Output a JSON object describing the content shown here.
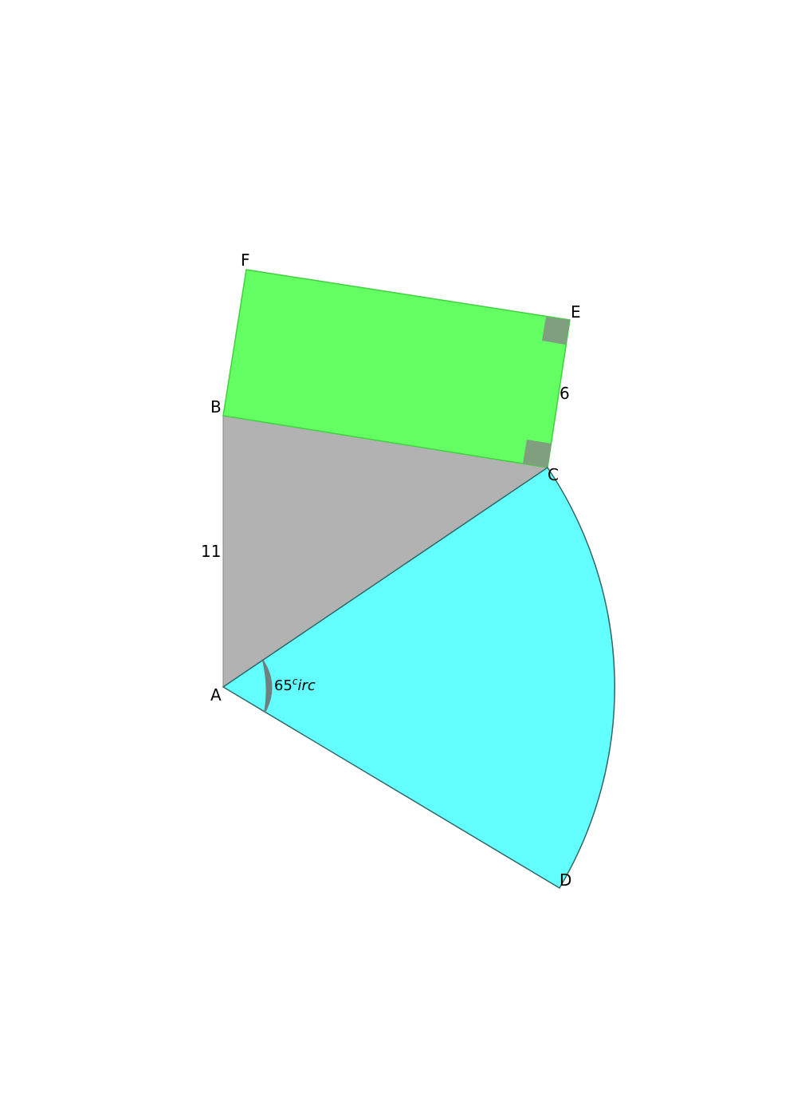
{
  "diagram": {
    "points": {
      "A": "A",
      "B": "B",
      "C": "C",
      "D": "D",
      "E": "E",
      "F": "F"
    },
    "side_labels": {
      "AB": "11",
      "CE": "6"
    },
    "angle_label": {
      "value": "65",
      "sup": "c",
      "rest": "irc"
    },
    "colors": {
      "triangle_fill": "#b2b2b2",
      "rectangle_fill": "#63ff63",
      "rectangle_stroke": "#40d040",
      "sector_fill": "#63ffff",
      "sector_stroke": "#336666",
      "right_angle_marker": "#7f9f7f",
      "angle_arc": "#708080"
    }
  }
}
